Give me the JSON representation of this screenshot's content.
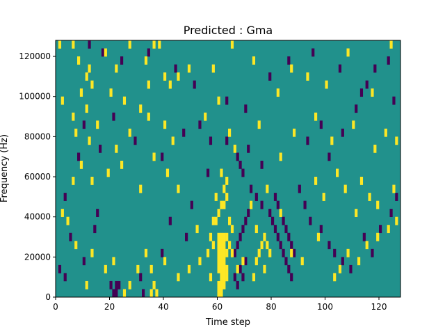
{
  "chart_data": {
    "type": "heatmap",
    "title": "Predicted : Gma",
    "xlabel": "Time step",
    "ylabel": "Frequency (Hz)",
    "xlim": [
      0,
      128
    ],
    "ylim": [
      0,
      128000
    ],
    "x_ticks": [
      "0",
      "20",
      "40",
      "60",
      "80",
      "100",
      "120"
    ],
    "y_ticks": [
      "0",
      "20000",
      "40000",
      "60000",
      "80000",
      "100000",
      "120000"
    ],
    "grid": false,
    "colormap": {
      "low": "#440154",
      "mid": "#21918c",
      "high": "#fde725"
    },
    "background_level": "mid",
    "n_time_steps": 128,
    "n_freq_bins": 32,
    "freq_bin_hz": 4000,
    "cells_high": [
      [
        1,
        31
      ],
      [
        6,
        31
      ],
      [
        8,
        29
      ],
      [
        11,
        27
      ],
      [
        12,
        28
      ],
      [
        18,
        30
      ],
      [
        22,
        28
      ],
      [
        27,
        31
      ],
      [
        33,
        29
      ],
      [
        36,
        31
      ],
      [
        38,
        31
      ],
      [
        45,
        27
      ],
      [
        2,
        24
      ],
      [
        6,
        22
      ],
      [
        9,
        25
      ],
      [
        11,
        23
      ],
      [
        13,
        26
      ],
      [
        20,
        25
      ],
      [
        25,
        24
      ],
      [
        31,
        23
      ],
      [
        34,
        26
      ],
      [
        40,
        27
      ],
      [
        42,
        26
      ],
      [
        49,
        28
      ],
      [
        58,
        28
      ],
      [
        65,
        31
      ],
      [
        73,
        29
      ],
      [
        82,
        25
      ],
      [
        87,
        28
      ],
      [
        93,
        27
      ],
      [
        100,
        26
      ],
      [
        108,
        30
      ],
      [
        117,
        25
      ],
      [
        124,
        31
      ],
      [
        7,
        20
      ],
      [
        12,
        19
      ],
      [
        15,
        21
      ],
      [
        22,
        18
      ],
      [
        27,
        20
      ],
      [
        34,
        22
      ],
      [
        36,
        17
      ],
      [
        40,
        21
      ],
      [
        43,
        19
      ],
      [
        55,
        22
      ],
      [
        60,
        24
      ],
      [
        64,
        20
      ],
      [
        66,
        18
      ],
      [
        75,
        21
      ],
      [
        83,
        17
      ],
      [
        88,
        20
      ],
      [
        96,
        22
      ],
      [
        102,
        19
      ],
      [
        110,
        21
      ],
      [
        118,
        18
      ],
      [
        122,
        20
      ],
      [
        126,
        19
      ],
      [
        9,
        16
      ],
      [
        13,
        14
      ],
      [
        19,
        15
      ],
      [
        24,
        16
      ],
      [
        31,
        13
      ],
      [
        41,
        15
      ],
      [
        45,
        13
      ],
      [
        59,
        12
      ],
      [
        62,
        13
      ],
      [
        63,
        14
      ],
      [
        61,
        15
      ],
      [
        60,
        10
      ],
      [
        61,
        11
      ],
      [
        62,
        11
      ],
      [
        63,
        12
      ],
      [
        58,
        9
      ],
      [
        59,
        9
      ],
      [
        64,
        9
      ],
      [
        65,
        8
      ],
      [
        72,
        11
      ],
      [
        74,
        8
      ],
      [
        78,
        13
      ],
      [
        83,
        10
      ],
      [
        96,
        14
      ],
      [
        99,
        12
      ],
      [
        104,
        15
      ],
      [
        107,
        13
      ],
      [
        111,
        10
      ],
      [
        113,
        14
      ],
      [
        116,
        12
      ],
      [
        119,
        11
      ],
      [
        125,
        13
      ],
      [
        60,
        0
      ],
      [
        61,
        0
      ],
      [
        62,
        1
      ],
      [
        63,
        2
      ],
      [
        60,
        1
      ],
      [
        61,
        1
      ],
      [
        61,
        2
      ],
      [
        62,
        2
      ],
      [
        60,
        3
      ],
      [
        61,
        3
      ],
      [
        62,
        3
      ],
      [
        63,
        3
      ],
      [
        60,
        4
      ],
      [
        61,
        4
      ],
      [
        62,
        4
      ],
      [
        60,
        5
      ],
      [
        61,
        5
      ],
      [
        62,
        5
      ],
      [
        63,
        5
      ],
      [
        60,
        6
      ],
      [
        61,
        6
      ],
      [
        62,
        6
      ],
      [
        60,
        7
      ],
      [
        61,
        7
      ],
      [
        62,
        7
      ],
      [
        63,
        7
      ],
      [
        64,
        6
      ],
      [
        65,
        5
      ],
      [
        57,
        2
      ],
      [
        56,
        5
      ],
      [
        58,
        6
      ],
      [
        73,
        2
      ],
      [
        74,
        4
      ],
      [
        75,
        5
      ],
      [
        76,
        6
      ],
      [
        77,
        7
      ],
      [
        78,
        6
      ],
      [
        79,
        5
      ],
      [
        35,
        0
      ],
      [
        36,
        1
      ],
      [
        37,
        0
      ],
      [
        27,
        1
      ],
      [
        25,
        0
      ],
      [
        11,
        1
      ],
      [
        30,
        3
      ],
      [
        33,
        5
      ],
      [
        35,
        3
      ],
      [
        40,
        4
      ],
      [
        45,
        2
      ],
      [
        49,
        3
      ],
      [
        52,
        8
      ],
      [
        53,
        4
      ],
      [
        57,
        7
      ],
      [
        67,
        3
      ],
      [
        69,
        4
      ],
      [
        77,
        3
      ],
      [
        87,
        5
      ],
      [
        91,
        4
      ],
      [
        97,
        7
      ],
      [
        103,
        2
      ],
      [
        105,
        3
      ],
      [
        108,
        5
      ],
      [
        112,
        4
      ],
      [
        115,
        6
      ],
      [
        119,
        7
      ],
      [
        123,
        8
      ],
      [
        126,
        9
      ],
      [
        4,
        9
      ],
      [
        7,
        6
      ],
      [
        13,
        5
      ],
      [
        18,
        3
      ],
      [
        21,
        4
      ],
      [
        6,
        14
      ],
      [
        2,
        10
      ]
    ],
    "cells_low": [
      [
        12,
        31
      ],
      [
        17,
        30
      ],
      [
        24,
        29
      ],
      [
        34,
        30
      ],
      [
        44,
        28
      ],
      [
        51,
        26
      ],
      [
        63,
        24
      ],
      [
        70,
        23
      ],
      [
        79,
        27
      ],
      [
        86,
        29
      ],
      [
        95,
        30
      ],
      [
        105,
        28
      ],
      [
        113,
        25
      ],
      [
        123,
        29
      ],
      [
        10,
        21
      ],
      [
        16,
        18
      ],
      [
        21,
        22
      ],
      [
        29,
        19
      ],
      [
        39,
        17
      ],
      [
        47,
        20
      ],
      [
        53,
        21
      ],
      [
        57,
        19
      ],
      [
        67,
        17
      ],
      [
        68,
        16
      ],
      [
        69,
        15
      ],
      [
        72,
        13
      ],
      [
        74,
        12
      ],
      [
        76,
        11
      ],
      [
        79,
        10
      ],
      [
        80,
        9
      ],
      [
        81,
        8
      ],
      [
        82,
        7
      ],
      [
        83,
        6
      ],
      [
        84,
        5
      ],
      [
        85,
        4
      ],
      [
        86,
        3
      ],
      [
        87,
        2
      ],
      [
        84,
        9
      ],
      [
        85,
        8
      ],
      [
        86,
        7
      ],
      [
        87,
        6
      ],
      [
        88,
        5
      ],
      [
        82,
        11
      ],
      [
        81,
        12
      ],
      [
        66,
        5
      ],
      [
        67,
        6
      ],
      [
        68,
        7
      ],
      [
        69,
        8
      ],
      [
        70,
        9
      ],
      [
        71,
        10
      ],
      [
        66,
        2
      ],
      [
        67,
        1
      ],
      [
        68,
        3
      ],
      [
        69,
        2
      ],
      [
        70,
        4
      ],
      [
        90,
        13
      ],
      [
        92,
        11
      ],
      [
        94,
        9
      ],
      [
        98,
        8
      ],
      [
        101,
        6
      ],
      [
        103,
        5
      ],
      [
        106,
        4
      ],
      [
        109,
        3
      ],
      [
        114,
        7
      ],
      [
        117,
        5
      ],
      [
        120,
        8
      ],
      [
        124,
        10
      ],
      [
        126,
        12
      ],
      [
        1,
        3
      ],
      [
        3,
        2
      ],
      [
        5,
        7
      ],
      [
        10,
        4
      ],
      [
        14,
        8
      ],
      [
        20,
        1
      ],
      [
        21,
        0
      ],
      [
        22,
        0
      ],
      [
        23,
        1
      ],
      [
        22,
        1
      ],
      [
        31,
        2
      ],
      [
        32,
        0
      ],
      [
        39,
        5
      ],
      [
        42,
        9
      ],
      [
        48,
        7
      ],
      [
        50,
        11
      ],
      [
        56,
        15
      ],
      [
        63,
        19
      ],
      [
        71,
        18
      ],
      [
        76,
        16
      ],
      [
        93,
        19
      ],
      [
        98,
        21
      ],
      [
        101,
        17
      ],
      [
        106,
        20
      ],
      [
        111,
        23
      ],
      [
        115,
        26
      ],
      [
        118,
        28
      ],
      [
        125,
        24
      ],
      [
        3,
        12
      ],
      [
        8,
        17
      ],
      [
        15,
        10
      ]
    ]
  }
}
